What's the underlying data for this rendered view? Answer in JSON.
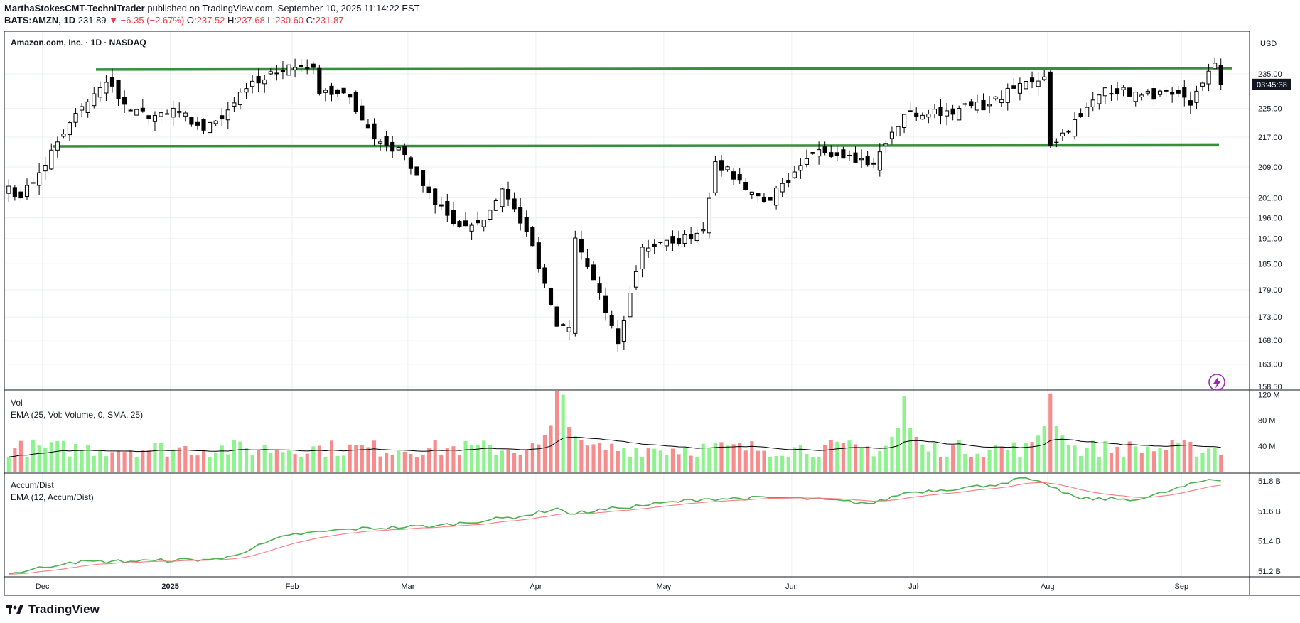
{
  "header": {
    "author": "MarthaStokesCMT-TechniTrader",
    "published_text": "published on TradingView.com, September 10, 2025 11:14:22 EST",
    "symbol": "BATS:AMZN, 1D",
    "last": "231.89",
    "change": "−6.35 (−2.67%)",
    "o_label": "O:",
    "o": "237.52",
    "h_label": "H:",
    "h": "237.68",
    "l_label": "L:",
    "l": "230.60",
    "c_label": "C:",
    "c": "231.87"
  },
  "footer": {
    "brand": "TradingView"
  },
  "colors": {
    "up": "#ffffff",
    "down": "#000000",
    "trendline": "#388e3c",
    "vol_up": "#8ef28e",
    "vol_down": "#f78c8c",
    "ad_line": "#4caf50",
    "ad_ema": "#f77c80",
    "badge": "#131722"
  },
  "chart_data": [
    {
      "type": "candlestick",
      "title": "Amazon.com, Inc. · 1D · NASDAQ",
      "currency": "USD",
      "price_axis_labels": [
        "235.00",
        "225.00",
        "217.00",
        "209.00",
        "201.00",
        "196.00",
        "191.00",
        "185.00",
        "179.00",
        "173.00",
        "168.00",
        "163.00",
        "158.50"
      ],
      "price_axis_values": [
        235,
        225,
        217,
        209,
        201,
        196,
        191,
        185,
        179,
        173,
        168,
        163,
        158.5
      ],
      "current_price_label": "03:45:38",
      "x_ticks": [
        "Dec",
        "2025",
        "Feb",
        "Mar",
        "Apr",
        "May",
        "Jun",
        "Jul",
        "Aug",
        "Sep"
      ],
      "horizontal_lines": [
        {
          "name": "resistance",
          "y_start": 236.3,
          "y_end": 236.7
        },
        {
          "name": "support",
          "y_start": 214.5,
          "y_end": 214.8
        }
      ],
      "anchors": [
        [
          "2024-11-21",
          204.0
        ],
        [
          "2024-11-25",
          201.0
        ],
        [
          "2024-11-29",
          207.5
        ],
        [
          "2024-12-06",
          221.0
        ],
        [
          "2024-12-16",
          232.5
        ],
        [
          "2024-12-20",
          224.5
        ],
        [
          "2024-12-27",
          223.0
        ],
        [
          "2025-01-03",
          224.2
        ],
        [
          "2025-01-10",
          218.9
        ],
        [
          "2025-01-15",
          222.0
        ],
        [
          "2025-01-22",
          230.7
        ],
        [
          "2025-01-31",
          237.7
        ],
        [
          "2025-02-06",
          236.9
        ],
        [
          "2025-02-07",
          229.2
        ],
        [
          "2025-02-14",
          228.2
        ],
        [
          "2025-02-21",
          216.5
        ],
        [
          "2025-02-28",
          212.3
        ],
        [
          "2025-03-07",
          199.3
        ],
        [
          "2025-03-13",
          193.9
        ],
        [
          "2025-03-19",
          195.5
        ],
        [
          "2025-03-24",
          203.3
        ],
        [
          "2025-03-28",
          192.7
        ],
        [
          "2025-04-04",
          171.0
        ],
        [
          "2025-04-08",
          170.7
        ],
        [
          "2025-04-09",
          191.1
        ],
        [
          "2025-04-21",
          167.3
        ],
        [
          "2025-04-25",
          188.9
        ],
        [
          "2025-05-02",
          189.9
        ],
        [
          "2025-05-09",
          193.1
        ],
        [
          "2025-05-13",
          210.4
        ],
        [
          "2025-05-23",
          200.0
        ],
        [
          "2025-05-30",
          205.0
        ],
        [
          "2025-06-06",
          213.6
        ],
        [
          "2025-06-13",
          212.1
        ],
        [
          "2025-06-20",
          209.7
        ],
        [
          "2025-06-27",
          223.3
        ],
        [
          "2025-07-03",
          223.4
        ],
        [
          "2025-07-11",
          225.0
        ],
        [
          "2025-07-18",
          226.1
        ],
        [
          "2025-07-28",
          232.8
        ],
        [
          "2025-07-31",
          234.1
        ],
        [
          "2025-08-01",
          214.8
        ],
        [
          "2025-08-08",
          222.7
        ],
        [
          "2025-08-14",
          230.9
        ],
        [
          "2025-08-22",
          228.8
        ],
        [
          "2025-08-29",
          229.0
        ],
        [
          "2025-09-03",
          225.9
        ],
        [
          "2025-09-08",
          235.8
        ],
        [
          "2025-09-09",
          238.2
        ],
        [
          "2025-09-10",
          231.9
        ]
      ]
    },
    {
      "type": "bar",
      "title": "Vol",
      "indicator": "EMA (25, Vol: Volume, 0, SMA, 25)",
      "y_axis_labels": [
        "120 M",
        "80 M",
        "40 M"
      ],
      "y_axis_values": [
        120000000,
        80000000,
        40000000
      ],
      "typical_volume_millions": 40,
      "peaks": [
        [
          "2025-04-04",
          125
        ],
        [
          "2025-04-07",
          120
        ],
        [
          "2025-06-27",
          118
        ],
        [
          "2025-08-01",
          122
        ]
      ]
    },
    {
      "type": "line",
      "title": "Accum/Dist",
      "indicator": "EMA (12, Accum/Dist)",
      "y_axis_labels": [
        "51.8 B",
        "51.6 B",
        "51.4 B",
        "51.2 B"
      ],
      "y_axis_values": [
        51.8,
        51.6,
        51.4,
        51.2
      ],
      "anchors_billions": [
        [
          "2024-11-21",
          51.18
        ],
        [
          "2024-12-06",
          51.26
        ],
        [
          "2024-12-27",
          51.27
        ],
        [
          "2025-01-15",
          51.28
        ],
        [
          "2025-01-31",
          51.44
        ],
        [
          "2025-02-14",
          51.48
        ],
        [
          "2025-03-07",
          51.5
        ],
        [
          "2025-03-28",
          51.57
        ],
        [
          "2025-04-04",
          51.62
        ],
        [
          "2025-04-08",
          51.58
        ],
        [
          "2025-04-21",
          51.62
        ],
        [
          "2025-05-09",
          51.68
        ],
        [
          "2025-05-30",
          51.69
        ],
        [
          "2025-06-20",
          51.65
        ],
        [
          "2025-06-27",
          51.72
        ],
        [
          "2025-07-18",
          51.77
        ],
        [
          "2025-07-28",
          51.82
        ],
        [
          "2025-08-01",
          51.76
        ],
        [
          "2025-08-08",
          51.68
        ],
        [
          "2025-08-22",
          51.68
        ],
        [
          "2025-09-08",
          51.81
        ],
        [
          "2025-09-10",
          51.8
        ]
      ]
    }
  ]
}
